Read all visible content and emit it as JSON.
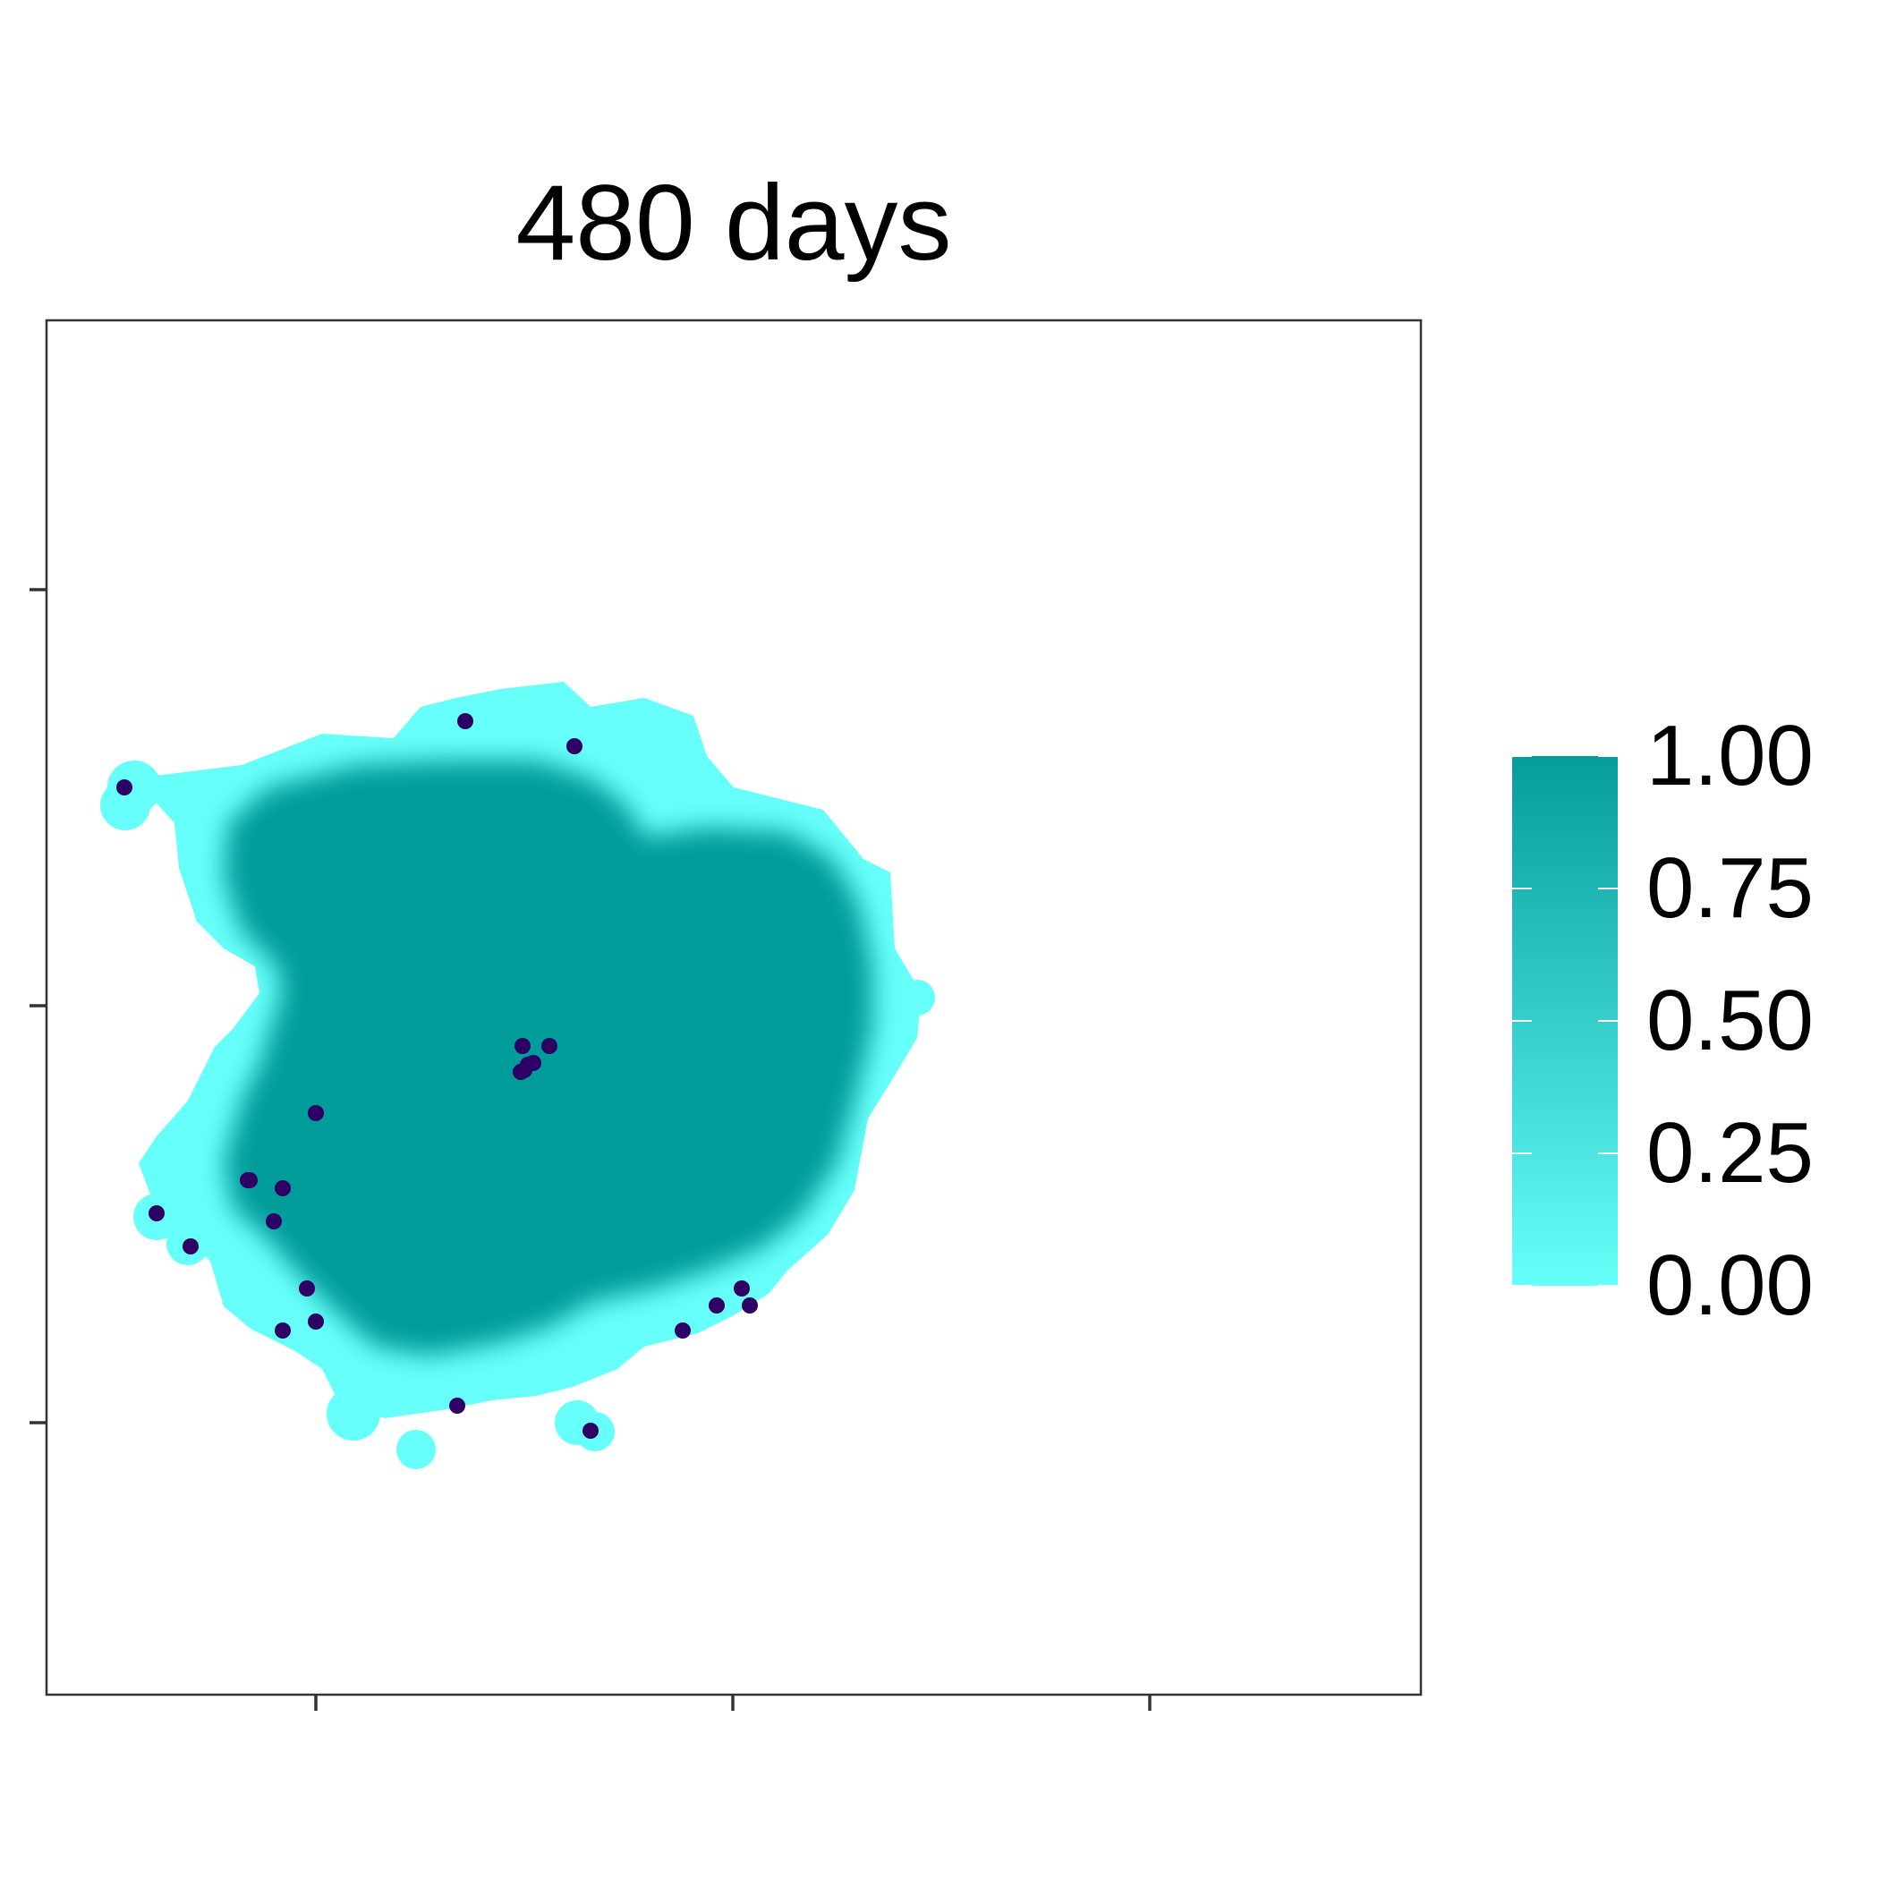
{
  "chart_data": {
    "type": "heatmap",
    "title": "480 days",
    "xlabel": "",
    "ylabel": "",
    "x_ticks": [
      "",
      "",
      ""
    ],
    "y_ticks": [
      "",
      "",
      ""
    ],
    "grid": false,
    "fill_scale": {
      "min": 0.0,
      "max": 1.0,
      "low_color": "#66fffa",
      "high_color": "#069c9a",
      "breaks": [
        "1.00",
        "0.75",
        "0.50",
        "0.25",
        "0.00"
      ],
      "legend_position": "right"
    },
    "region": {
      "description_value": 1.0,
      "edge_value": 0.0
    },
    "points": {
      "color": "#2e0066",
      "count": 25
    }
  }
}
